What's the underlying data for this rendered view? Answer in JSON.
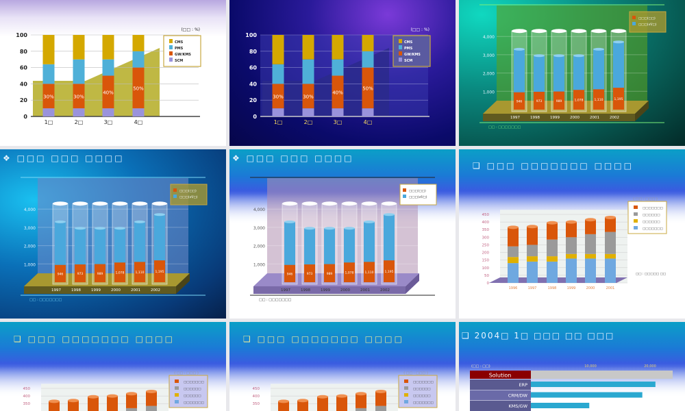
{
  "panels": [
    {
      "id": "p1",
      "title": "",
      "chart": 0,
      "theme": "light"
    },
    {
      "id": "p2",
      "title": "",
      "chart": 0,
      "theme": "dark"
    },
    {
      "id": "p3",
      "title": "",
      "chart": 1,
      "theme": "green"
    },
    {
      "id": "p4",
      "title": "❖ □□□ □□□ □□□□",
      "chart": 1,
      "theme": "blue"
    },
    {
      "id": "p5",
      "title": "❖ □□□ □□□ □□□□",
      "chart": 1,
      "theme": "pink"
    },
    {
      "id": "p6",
      "title": "❑ □□□ □□□□□□□ □□□□",
      "chart": 2,
      "theme": "white"
    },
    {
      "id": "p7",
      "title": "❑ □□□ □□□□□□□ □□□□",
      "chart": 2,
      "theme": "white"
    },
    {
      "id": "p8",
      "title": "❑ □□□ □□□□□□□ □□□□",
      "chart": 2,
      "theme": "white"
    },
    {
      "id": "p9",
      "title": "❑ 2004□ 1□ □□□ □□ □□□",
      "chart": 3,
      "theme": "white"
    }
  ],
  "chart_data": [
    {
      "type": "bar",
      "stacked": true,
      "unit_label": "(□□ : %)",
      "categories": [
        "1□",
        "2□",
        "3□",
        "4□"
      ],
      "ylim": [
        0,
        100
      ],
      "yticks": [
        0,
        20,
        40,
        60,
        80,
        100
      ],
      "series": [
        {
          "name": "SCM",
          "values": [
            10,
            10,
            10,
            10
          ],
          "color": "#9a93dc"
        },
        {
          "name": "GW/KMS",
          "values": [
            30,
            30,
            40,
            50
          ],
          "color": "#d9560a",
          "labels": [
            "30%",
            "30%",
            "40%",
            "50%"
          ]
        },
        {
          "name": "PMS",
          "values": [
            24,
            30,
            20,
            20
          ],
          "color": "#4fb0d8"
        },
        {
          "name": "CMS",
          "values": [
            36,
            30,
            30,
            20
          ],
          "color": "#d4a800"
        }
      ],
      "legend": "right"
    },
    {
      "type": "bar",
      "style": "cylinder",
      "categories": [
        "1997",
        "1998",
        "1999",
        "2000",
        "2001",
        "2002"
      ],
      "ylim": [
        0,
        4000
      ],
      "yticks": [
        "1,000",
        "2,000",
        "3,000",
        "4,000"
      ],
      "series": [
        {
          "name": "□□□(□□)",
          "values": [
            946,
            973,
            989,
            1078,
            1110,
            1195
          ],
          "labels": [
            "946",
            "973",
            "989",
            "1,078",
            "1,110",
            "1,195"
          ],
          "color": "#d9560a"
        },
        {
          "name": "□□□(㎡/□)",
          "values": [
            3300,
            2950,
            2950,
            2950,
            3300,
            3700
          ],
          "color": "#4aa8dc"
        }
      ],
      "source": "□□ : □□□□□□□",
      "legend": "right"
    },
    {
      "type": "bar",
      "style": "cylinder",
      "stacked": true,
      "unit_label": "( □□ : □□□ )",
      "categories": [
        "1996",
        "1997",
        "1998",
        "1999",
        "2000",
        "2001"
      ],
      "ylim": [
        0,
        450
      ],
      "yticks": [
        0,
        50,
        100,
        150,
        200,
        250,
        300,
        350,
        400,
        450
      ],
      "series": [
        {
          "name": "□□□□□□□",
          "values": [
            130,
            140,
            140,
            160,
            160,
            160
          ],
          "color": "#6fa8e0"
        },
        {
          "name": "□□□□□□",
          "values": [
            40,
            35,
            35,
            30,
            30,
            30
          ],
          "color": "#e0b000"
        },
        {
          "name": "□□□□□□",
          "values": [
            70,
            75,
            110,
            110,
            130,
            145
          ],
          "color": "#9a9a9a"
        },
        {
          "name": "□□□□□□□",
          "values": [
            125,
            120,
            110,
            100,
            95,
            95
          ],
          "color": "#d9560a"
        }
      ],
      "legend_order": [
        3,
        2,
        1,
        0
      ],
      "source": "□□ : □□□□□ □□",
      "legend": "right"
    },
    {
      "type": "bar",
      "orientation": "horizontal",
      "header": "Solution",
      "unit_label": "(□□ : □□)",
      "xticks": [
        "10,000",
        "20,000"
      ],
      "categories": [
        "ERP",
        "CRM/DW",
        "KMS/GW"
      ],
      "values": [
        20900,
        18700,
        9800
      ],
      "color": "#2aa8d0"
    }
  ]
}
